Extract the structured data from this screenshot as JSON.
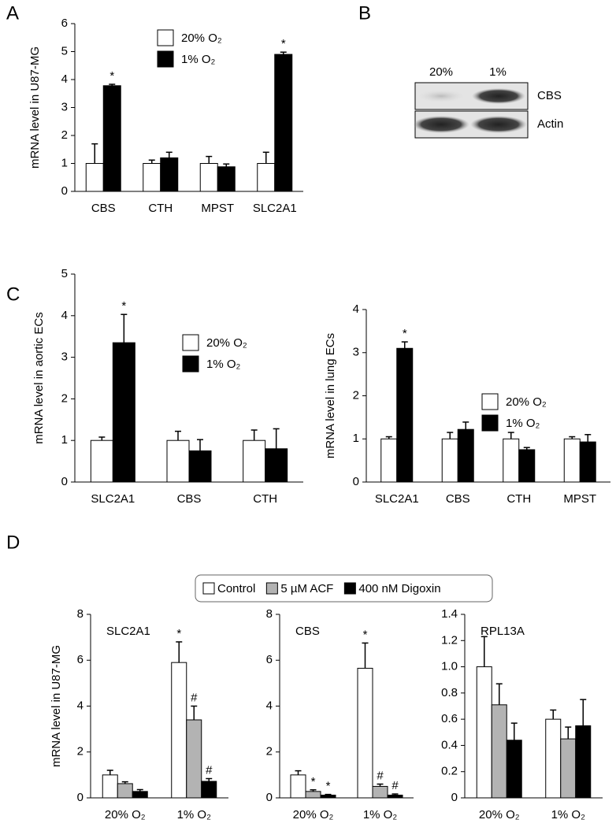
{
  "chart_data": [
    {
      "type": "bar",
      "panel": "A",
      "ylabel": "mRNA level in U87-MG",
      "categories": [
        "CBS",
        "CTH",
        "MPST",
        "SLC2A1"
      ],
      "ylim": [
        0,
        6
      ],
      "yticks": [
        0,
        1,
        2,
        3,
        4,
        5,
        6
      ],
      "series": [
        {
          "name": "20% O₂",
          "color": "#ffffff",
          "values": [
            1,
            1,
            1,
            1
          ],
          "errors": [
            0.7,
            0.12,
            0.25,
            0.4
          ],
          "annotations": [
            null,
            null,
            null,
            null
          ]
        },
        {
          "name": "1% O₂",
          "color": "#000000",
          "values": [
            3.78,
            1.2,
            0.88,
            4.9
          ],
          "errors": [
            0.05,
            0.2,
            0.1,
            0.08
          ],
          "annotations": [
            "*",
            null,
            null,
            "*"
          ]
        }
      ]
    },
    {
      "type": "bar",
      "panel": "C",
      "ylabel": "mRNA level in aortic ECs",
      "categories": [
        "SLC2A1",
        "CBS",
        "CTH"
      ],
      "ylim": [
        0,
        5
      ],
      "yticks": [
        0,
        1,
        2,
        3,
        4,
        5
      ],
      "series": [
        {
          "name": "20% O₂",
          "color": "#ffffff",
          "values": [
            1,
            1,
            1
          ],
          "errors": [
            0.08,
            0.22,
            0.25
          ],
          "annotations": [
            null,
            null,
            null
          ]
        },
        {
          "name": "1% O₂",
          "color": "#000000",
          "values": [
            3.35,
            0.75,
            0.8
          ],
          "errors": [
            0.68,
            0.27,
            0.48
          ],
          "annotations": [
            "*",
            null,
            null
          ]
        }
      ]
    },
    {
      "type": "bar",
      "ylabel": "mRNA level in lung ECs",
      "categories": [
        "SLC2A1",
        "CBS",
        "CTH",
        "MPST"
      ],
      "ylim": [
        0,
        4
      ],
      "yticks": [
        0,
        1,
        2,
        3,
        4
      ],
      "series": [
        {
          "name": "20% O₂",
          "color": "#ffffff",
          "values": [
            1,
            1,
            1,
            1
          ],
          "errors": [
            0.05,
            0.15,
            0.15,
            0.05
          ],
          "annotations": [
            null,
            null,
            null,
            null
          ]
        },
        {
          "name": "1% O₂",
          "color": "#000000",
          "values": [
            3.1,
            1.22,
            0.75,
            0.93
          ],
          "errors": [
            0.15,
            0.17,
            0.05,
            0.17
          ],
          "annotations": [
            "*",
            null,
            null,
            null
          ]
        }
      ]
    },
    {
      "type": "bar",
      "panel": "D",
      "title": "SLC2A1",
      "ylabel": "mRNA level in U87-MG",
      "categories": [
        "20% O₂",
        "1% O₂"
      ],
      "ylim": [
        0,
        8
      ],
      "yticks": [
        0,
        2,
        4,
        6,
        8
      ],
      "series": [
        {
          "color": "#ffffff",
          "values": [
            1,
            5.9
          ],
          "errors": [
            0.2,
            0.9
          ],
          "annotations": [
            null,
            "*"
          ]
        },
        {
          "color": "#b3b3b3",
          "values": [
            0.62,
            3.4
          ],
          "errors": [
            0.08,
            0.6
          ],
          "annotations": [
            null,
            "#"
          ]
        },
        {
          "color": "#000000",
          "values": [
            0.28,
            0.72
          ],
          "errors": [
            0.08,
            0.12
          ],
          "annotations": [
            null,
            "#"
          ]
        }
      ]
    },
    {
      "type": "bar",
      "title": "CBS",
      "categories": [
        "20% O₂",
        "1% O₂"
      ],
      "ylim": [
        0,
        8
      ],
      "yticks": [
        0,
        2,
        4,
        6,
        8
      ],
      "series": [
        {
          "color": "#ffffff",
          "values": [
            1,
            5.65
          ],
          "errors": [
            0.18,
            1.1
          ],
          "annotations": [
            null,
            "*"
          ]
        },
        {
          "color": "#b3b3b3",
          "values": [
            0.28,
            0.5
          ],
          "errors": [
            0.07,
            0.1
          ],
          "annotations": [
            "*",
            "#"
          ]
        },
        {
          "color": "#000000",
          "values": [
            0.12,
            0.12
          ],
          "errors": [
            0.03,
            0.05
          ],
          "annotations": [
            "*",
            "#"
          ]
        }
      ]
    },
    {
      "type": "bar",
      "title": "RPL13A",
      "categories": [
        "20% O₂",
        "1% O₂"
      ],
      "ylim": [
        0,
        1.4
      ],
      "yticks": [
        0,
        0.2,
        0.4,
        0.6,
        0.8,
        {
          "value": 1,
          "label": "1.0"
        },
        1.2,
        1.4
      ],
      "series": [
        {
          "color": "#ffffff",
          "values": [
            1,
            0.6
          ],
          "errors": [
            0.23,
            0.07
          ],
          "annotations": [
            null,
            null
          ]
        },
        {
          "color": "#b3b3b3",
          "values": [
            0.71,
            0.45
          ],
          "errors": [
            0.16,
            0.09
          ],
          "annotations": [
            null,
            null
          ]
        },
        {
          "color": "#000000",
          "values": [
            0.44,
            0.55
          ],
          "errors": [
            0.13,
            0.2
          ],
          "annotations": [
            null,
            null
          ]
        }
      ]
    }
  ],
  "shared_legend": {
    "items": [
      {
        "name": "Control",
        "color": "#ffffff"
      },
      {
        "name": "5 µM ACF",
        "color": "#b3b3b3"
      },
      {
        "name": "400 nM Digoxin",
        "color": "#000000"
      }
    ]
  },
  "blot": {
    "panel": "B",
    "columns": [
      "20%",
      "1%"
    ],
    "rows": [
      "CBS",
      "Actin"
    ]
  }
}
